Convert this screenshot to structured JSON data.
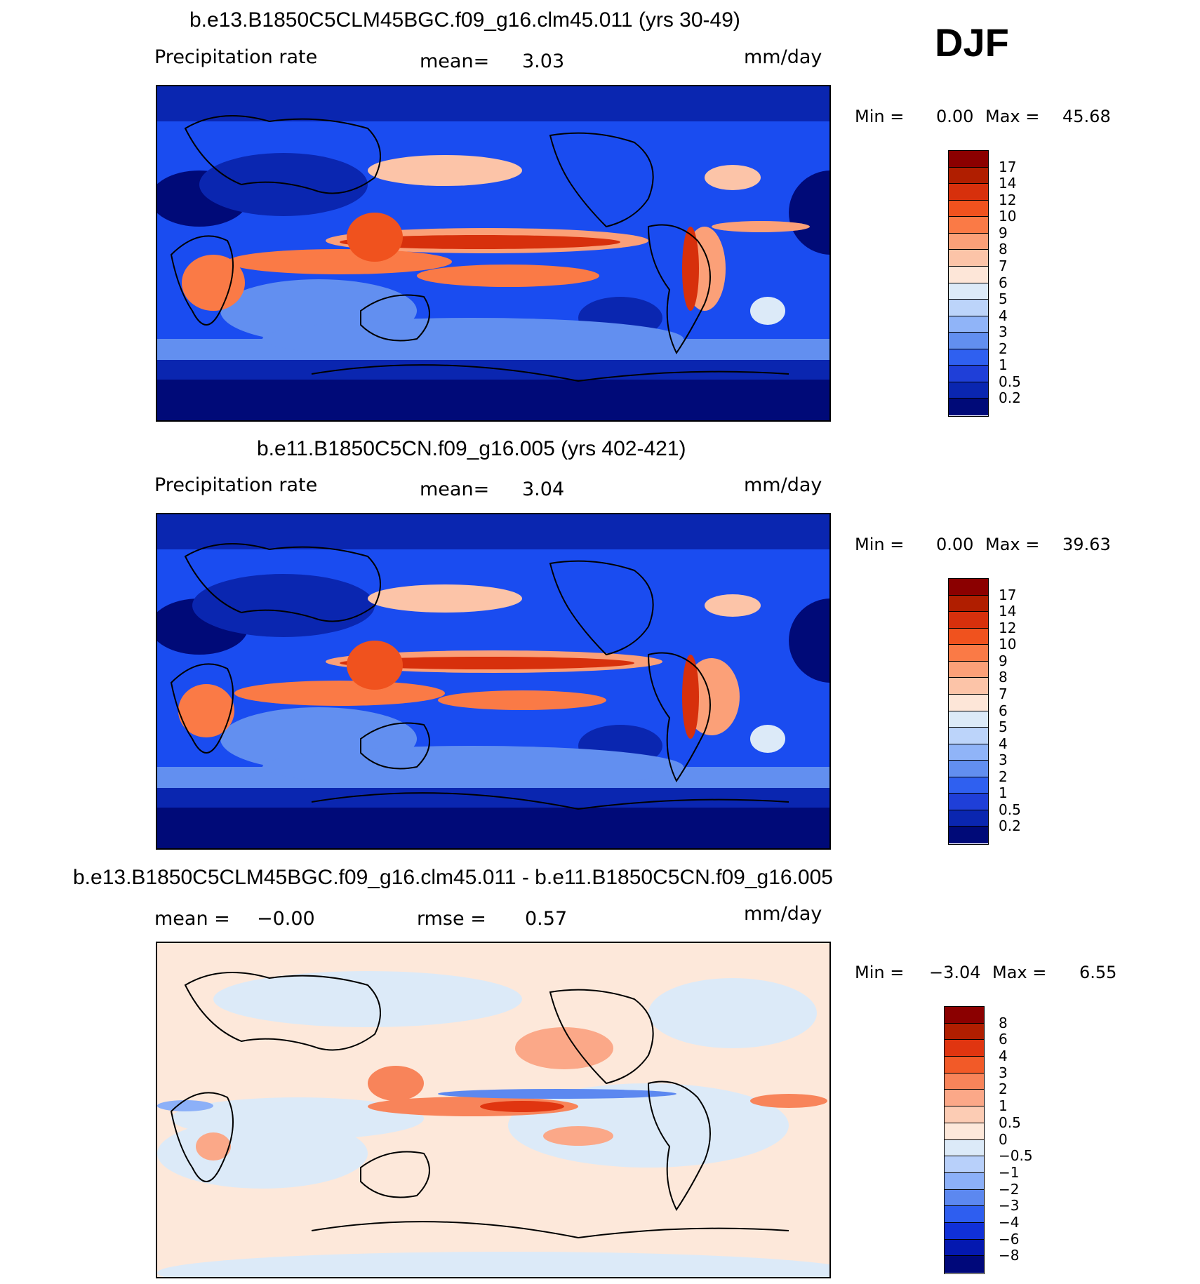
{
  "season": "DJF",
  "panels": [
    {
      "title": "b.e13.B1850C5CLM45BGC.f09_g16.clm45.011 (yrs 30-49)",
      "left_label": "Precipitation rate",
      "mid_label": "mean=",
      "mid_value": "3.03",
      "units": "mm/day",
      "min_label": "Min =",
      "min_value": "0.00",
      "max_label": "Max =",
      "max_value": "45.68",
      "levels": [
        "17",
        "14",
        "12",
        "10",
        "9",
        "8",
        "7",
        "6",
        "5",
        "4",
        "3",
        "2",
        "1",
        "0.5",
        "0.2"
      ],
      "colors": [
        "#8b0000",
        "#b01e00",
        "#d7300c",
        "#f0521e",
        "#fa7a46",
        "#fba078",
        "#fcc4a8",
        "#fde6d8",
        "#dceaf8",
        "#bcd4fa",
        "#90b4f8",
        "#628ff0",
        "#2f60f0",
        "#1f3fd8",
        "#0a26b0",
        "#000a78"
      ]
    },
    {
      "title": "b.e11.B1850C5CN.f09_g16.005 (yrs 402-421)",
      "left_label": "Precipitation rate",
      "mid_label": "mean=",
      "mid_value": "3.04",
      "units": "mm/day",
      "min_label": "Min =",
      "min_value": "0.00",
      "max_label": "Max =",
      "max_value": "39.63",
      "levels": [
        "17",
        "14",
        "12",
        "10",
        "9",
        "8",
        "7",
        "6",
        "5",
        "4",
        "3",
        "2",
        "1",
        "0.5",
        "0.2"
      ],
      "colors": [
        "#8b0000",
        "#b01e00",
        "#d7300c",
        "#f0521e",
        "#fa7a46",
        "#fba078",
        "#fcc4a8",
        "#fde6d8",
        "#dceaf8",
        "#bcd4fa",
        "#90b4f8",
        "#628ff0",
        "#2f60f0",
        "#1f3fd8",
        "#0a26b0",
        "#000a78"
      ]
    },
    {
      "title": "b.e13.B1850C5CLM45BGC.f09_g16.clm45.011 - b.e11.B1850C5CN.f09_g16.005",
      "left_label": "mean =",
      "left_value": "−0.00",
      "mid_label": "rmse =",
      "mid_value": "0.57",
      "units": "mm/day",
      "min_label": "Min =",
      "min_value": "−3.04",
      "max_label": "Max =",
      "max_value": "6.55",
      "levels": [
        "8",
        "6",
        "4",
        "3",
        "2",
        "1",
        "0.5",
        "0",
        "−0.5",
        "−1",
        "−2",
        "−3",
        "−4",
        "−6",
        "−8"
      ],
      "colors": [
        "#8b0000",
        "#b01e00",
        "#e03510",
        "#f25a28",
        "#f8845a",
        "#fba888",
        "#fcccb4",
        "#fde8da",
        "#dceaf8",
        "#b8d0fa",
        "#8cb0f8",
        "#5c88f0",
        "#2e5ef0",
        "#1030d8",
        "#0418b0",
        "#00087a"
      ]
    }
  ],
  "chart_data": {
    "type": "heatmap",
    "variable": "Precipitation rate",
    "units": "mm/day",
    "season": "DJF",
    "panels": [
      {
        "dataset": "b.e13.B1850C5CLM45BGC.f09_g16.clm45.011 (yrs 30-49)",
        "mean": 3.03,
        "min": 0.0,
        "max": 45.68,
        "levels": [
          0.2,
          0.5,
          1,
          2,
          3,
          4,
          5,
          6,
          7,
          8,
          9,
          10,
          12,
          14,
          17
        ]
      },
      {
        "dataset": "b.e11.B1850C5CN.f09_g16.005 (yrs 402-421)",
        "mean": 3.04,
        "min": 0.0,
        "max": 39.63,
        "levels": [
          0.2,
          0.5,
          1,
          2,
          3,
          4,
          5,
          6,
          7,
          8,
          9,
          10,
          12,
          14,
          17
        ]
      },
      {
        "dataset": "b.e13.B1850C5CLM45BGC.f09_g16.clm45.011 - b.e11.B1850C5CN.f09_g16.005",
        "mean": -0.0,
        "rmse": 0.57,
        "min": -3.04,
        "max": 6.55,
        "levels": [
          -8,
          -6,
          -4,
          -3,
          -2,
          -1,
          -0.5,
          0,
          0.5,
          1,
          2,
          3,
          4,
          6,
          8
        ]
      }
    ]
  }
}
